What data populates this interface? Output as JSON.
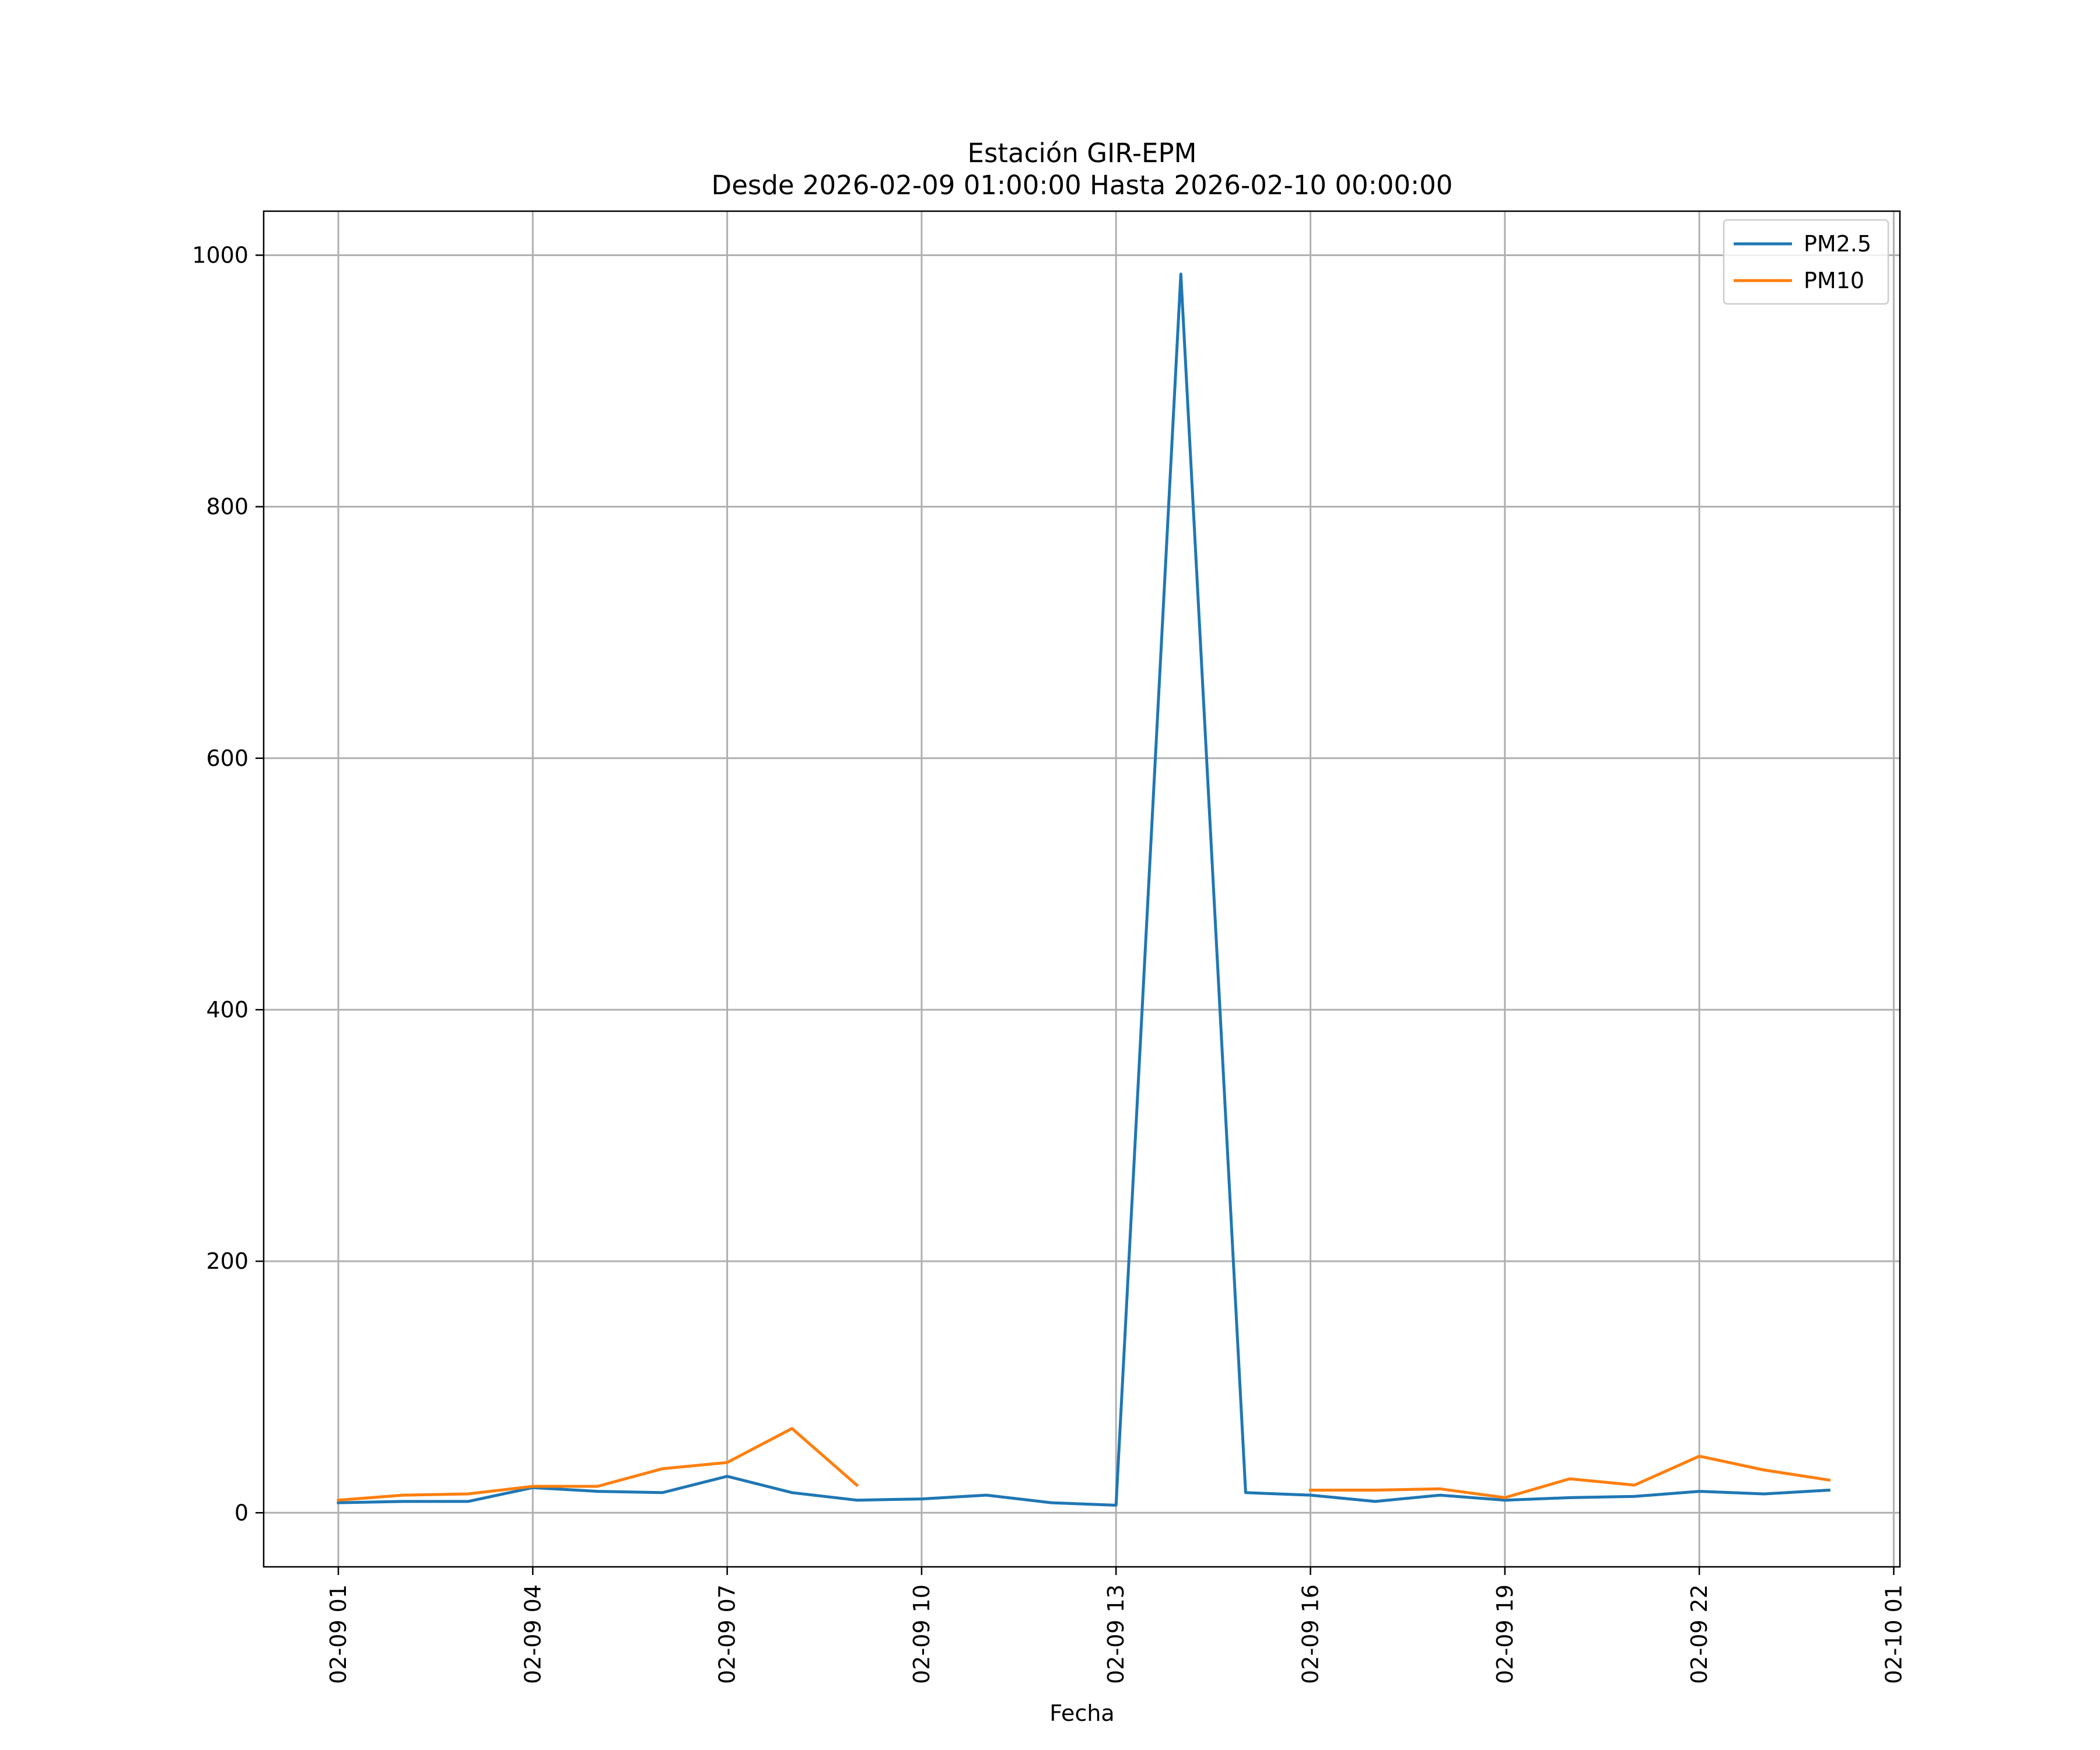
{
  "chart_data": {
    "type": "line",
    "title": "Estación GIR-EPM",
    "subtitle": "Desde 2026-02-09 01:00:00 Hasta 2026-02-10 00:00:00",
    "xlabel": "Fecha",
    "ylabel": "",
    "x_tick_labels": [
      "02-09 01",
      "02-09 04",
      "02-09 07",
      "02-09 10",
      "02-09 13",
      "02-09 16",
      "02-09 19",
      "02-09 22",
      "02-10 01"
    ],
    "y_ticks": [
      0,
      200,
      400,
      600,
      800,
      1000
    ],
    "ylim": [
      -43,
      1035
    ],
    "grid": true,
    "legend_position": "top-right",
    "x": [
      "02-09 01",
      "02-09 02",
      "02-09 03",
      "02-09 04",
      "02-09 05",
      "02-09 06",
      "02-09 07",
      "02-09 08",
      "02-09 09",
      "02-09 10",
      "02-09 11",
      "02-09 12",
      "02-09 13",
      "02-09 14",
      "02-09 15",
      "02-09 16",
      "02-09 17",
      "02-09 18",
      "02-09 19",
      "02-09 20",
      "02-09 21",
      "02-09 22",
      "02-09 23",
      "02-10 00"
    ],
    "series": [
      {
        "name": "PM2.5",
        "color": "#1f77b4",
        "values": [
          8,
          9,
          9,
          20,
          17,
          16,
          29,
          16,
          10,
          11,
          14,
          8,
          6,
          985,
          16,
          14,
          9,
          14,
          10,
          12,
          13,
          17,
          15,
          18
        ]
      },
      {
        "name": "PM10",
        "color": "#ff7f0e",
        "values": [
          10,
          14,
          15,
          21,
          21,
          35,
          40,
          67,
          22,
          null,
          null,
          null,
          null,
          null,
          null,
          18,
          18,
          19,
          12,
          27,
          22,
          45,
          34,
          26
        ]
      }
    ]
  }
}
